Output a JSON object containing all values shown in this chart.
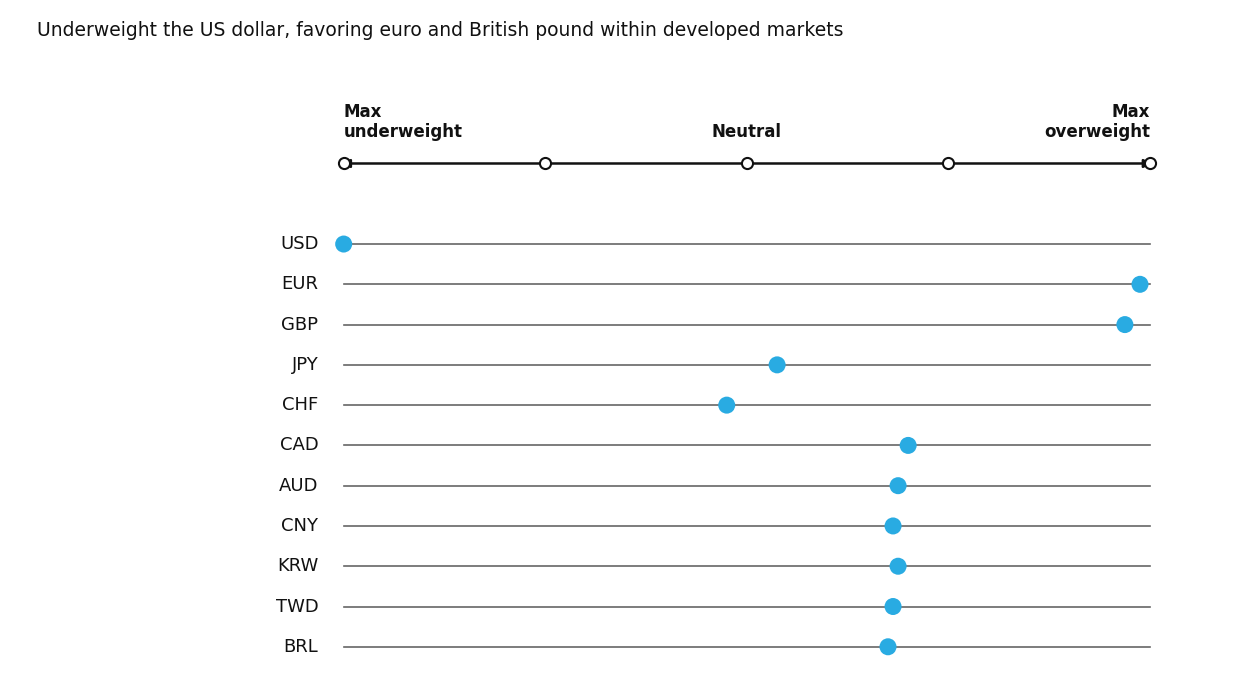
{
  "title": "Underweight the US dollar, favoring euro and British pound within developed markets",
  "currencies": [
    "USD",
    "EUR",
    "GBP",
    "JPY",
    "CHF",
    "CAD",
    "AUD",
    "CNY",
    "KRW",
    "TWD",
    "BRL"
  ],
  "positions": [
    -4.0,
    3.9,
    3.75,
    0.3,
    -0.2,
    1.6,
    1.5,
    1.45,
    1.5,
    1.45,
    1.4
  ],
  "x_min": -4,
  "x_max": 4,
  "scale_markers": [
    -4,
    -2,
    0,
    2,
    4
  ],
  "dot_color": "#29ABE2",
  "dot_size": 150,
  "line_color": "#666666",
  "axis_color": "#111111",
  "bg_color": "#ffffff",
  "title_fontsize": 13.5,
  "label_fontsize": 13,
  "header_fontsize": 12,
  "max_underweight_label": "Max\nunderweight",
  "neutral_label": "Neutral",
  "max_overweight_label": "Max\noverweight"
}
